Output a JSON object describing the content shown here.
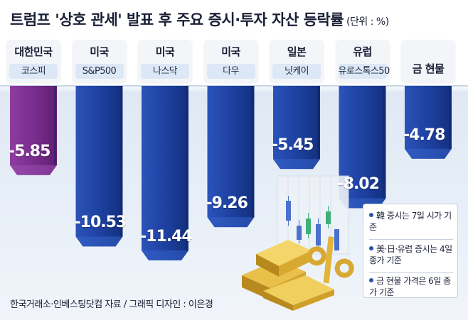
{
  "title": "트럼프 '상호 관세' 발표 후 주요 증시·투자 자산 등락률",
  "unit": "(단위 : %)",
  "colors": {
    "korea_bar": "#7b2f8e",
    "other_bar": "#1e43a6",
    "korea_bar_light": "#9c4db0",
    "other_bar_light": "#3563c8"
  },
  "chart_data": {
    "type": "bar",
    "title": "트럼프 '상호 관세' 발표 후 주요 증시·투자 자산 등락률",
    "unit": "%",
    "ylim": [
      -12,
      0
    ],
    "series": [
      {
        "country": "대한민국",
        "index": "코스피",
        "value": -5.85,
        "label": "-5.85"
      },
      {
        "country": "미국",
        "index": "S&P500",
        "value": -10.53,
        "label": "-10.53"
      },
      {
        "country": "미국",
        "index": "나스닥",
        "value": -11.44,
        "label": "-11.44"
      },
      {
        "country": "미국",
        "index": "다우",
        "value": -9.26,
        "label": "-9.26"
      },
      {
        "country": "일본",
        "index": "닛케이",
        "value": -5.45,
        "label": "-5.45"
      },
      {
        "country": "유럽",
        "index": "유로스톡스50",
        "value": -8.02,
        "label": "-8.02"
      },
      {
        "country": "금 현물",
        "index": "",
        "value": -4.78,
        "label": "-4.78"
      }
    ]
  },
  "notes": [
    "韓 증시는 7일 시가 기준",
    "美·日·유럽 증시는 4일 종가 기준",
    "금 현물 가격은 6일 종가 기준"
  ],
  "footer": "한국거래소·인베스팅닷컴 자료 / 그래픽 디자인 : 이은경"
}
